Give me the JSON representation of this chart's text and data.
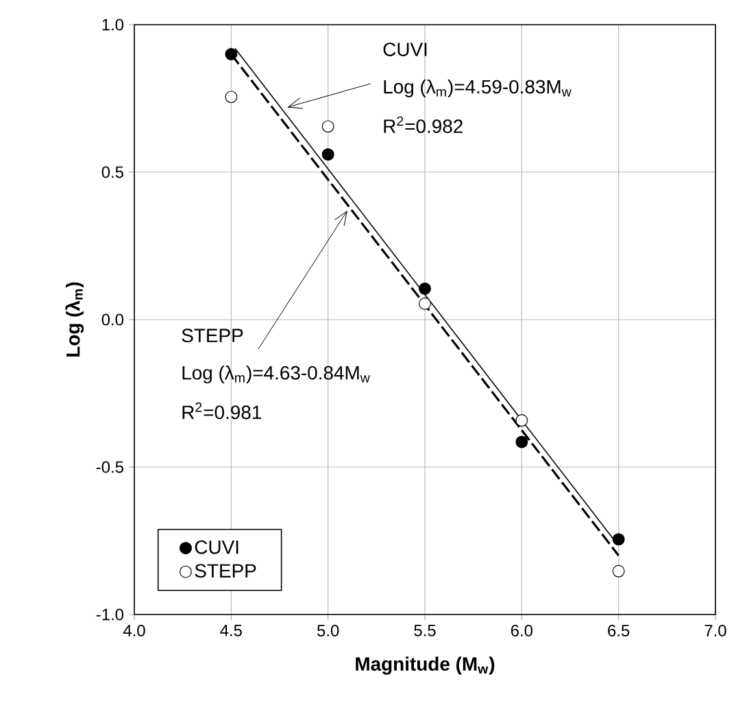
{
  "chart_data": {
    "type": "scatter",
    "xlabel": "Magnitude (M$_{w}$)",
    "ylabel": "Log (λ$_{m}$)",
    "xlim": [
      4.0,
      7.0
    ],
    "ylim": [
      -1.0,
      1.0
    ],
    "xticks": [
      {
        "value": 4.0,
        "label": "4.0"
      },
      {
        "value": 4.5,
        "label": "4.5"
      },
      {
        "value": 5.0,
        "label": "5.0"
      },
      {
        "value": 5.5,
        "label": "5.5"
      },
      {
        "value": 6.0,
        "label": "6.0"
      },
      {
        "value": 6.5,
        "label": "6.5"
      },
      {
        "value": 7.0,
        "label": "7.0"
      }
    ],
    "yticks": [
      {
        "value": -1.0,
        "label": "-1.0"
      },
      {
        "value": -0.5,
        "label": "-0.5"
      },
      {
        "value": 0.0,
        "label": "0.0"
      },
      {
        "value": 0.5,
        "label": "0.5"
      },
      {
        "value": 1.0,
        "label": "1.0"
      }
    ],
    "grid": true,
    "legend": "bottom left",
    "x": [
      4.5,
      5.0,
      5.5,
      6.0,
      6.5
    ],
    "series": [
      {
        "name": "CUVI",
        "color": "#000000",
        "marker": "circle",
        "values": [
          0.9,
          0.56,
          0.105,
          -0.415,
          -0.745
        ]
      },
      {
        "name": "STEPP",
        "color": "#ffffff",
        "marker": "circle",
        "values": [
          0.755,
          0.655,
          0.054,
          -0.342,
          -0.853
        ]
      },
      {
        "type": "line",
        "color": "#000000",
        "line_style": "solid",
        "marker": "none",
        "x": [
          4.52,
          6.48
        ],
        "values": [
          0.92,
          -0.75
        ]
      },
      {
        "type": "line",
        "color": "#000000",
        "line_style": "dashed",
        "marker": "none",
        "x": [
          4.5,
          6.5
        ],
        "values": [
          0.9,
          -0.8
        ]
      }
    ],
    "annotations": [
      "CUVI",
      {
        "text": "Log (λ$_{m}$)=4.59-0.83M$_{w}$",
        "x": 4.79,
        "y": 0.72
      },
      "R$^{2}$=0.982",
      {
        "text": "STEPP",
        "x": 5.1,
        "y": 0.37
      },
      "Log (λ$_{m}$)=4.63-0.84M$_{w}$",
      "R$^{2}$=0.981"
    ]
  }
}
